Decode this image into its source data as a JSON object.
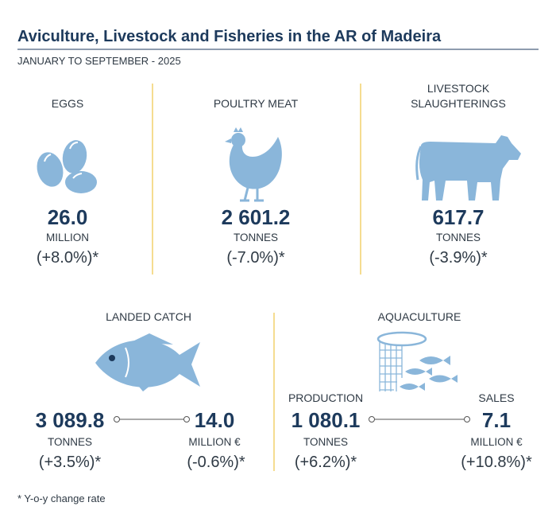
{
  "header": {
    "title": "Aviculture, Livestock and Fisheries in the AR of Madeira",
    "subtitle": "JANUARY TO SEPTEMBER - 2025"
  },
  "panels": [
    {
      "label_lines": [
        "EGGS"
      ],
      "value": "26.0",
      "unit": "MILLION",
      "change": "(+8.0%)*"
    },
    {
      "label_lines": [
        "POULTRY MEAT"
      ],
      "value": "2 601.2",
      "unit": "TONNES",
      "change": "(-7.0%)*"
    },
    {
      "label_lines": [
        "LIVESTOCK",
        "SLAUGHTERINGS"
      ],
      "value": "617.7",
      "unit": "TONNES",
      "change": "(-3.9%)*"
    }
  ],
  "landed_catch": {
    "label": "LANDED CATCH",
    "metrics": [
      {
        "value": "3 089.8",
        "unit": "TONNES",
        "change": "(+3.5%)*"
      },
      {
        "value": "14.0",
        "unit": "MILLION €",
        "change": "(-0.6%)*"
      }
    ]
  },
  "aquaculture": {
    "label": "AQUACULTURE",
    "metrics": [
      {
        "name": "PRODUCTION",
        "value": "1 080.1",
        "unit": "TONNES",
        "change": "(+6.2%)*"
      },
      {
        "name": "SALES",
        "value": "7.1",
        "unit": "MILLION €",
        "change": "(+10.8%)*"
      }
    ]
  },
  "footnote": "* Y-o-y change rate"
}
